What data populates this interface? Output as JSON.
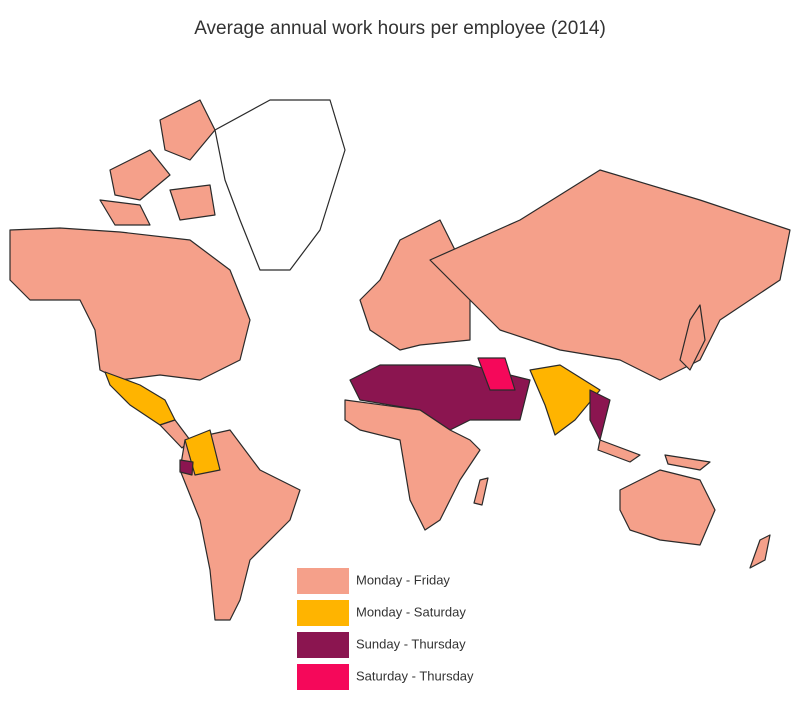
{
  "title": "Average annual work hours per employee (2014)",
  "legend": {
    "items": [
      {
        "label": "Monday - Friday",
        "color": "#f5a08a"
      },
      {
        "label": "Monday - Saturday",
        "color": "#ffb400"
      },
      {
        "label": "Sunday - Thursday",
        "color": "#8b1550"
      },
      {
        "label": "Saturday - Thursday",
        "color": "#f5085a"
      }
    ]
  }
}
